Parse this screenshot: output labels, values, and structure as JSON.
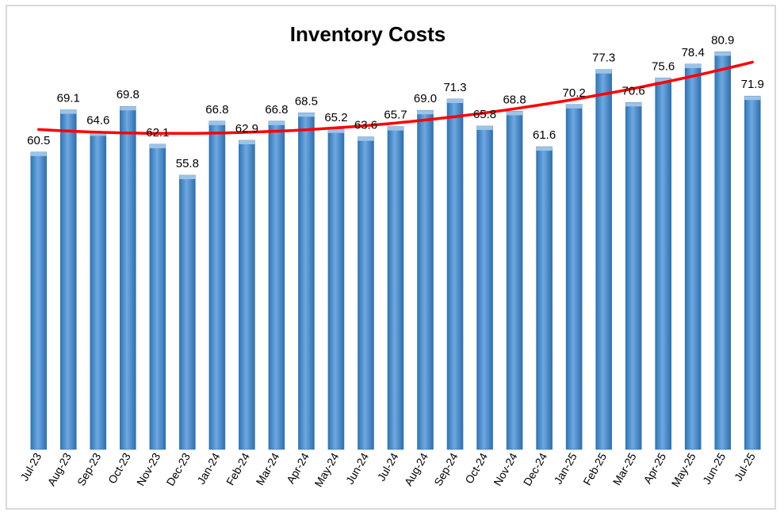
{
  "chart_data": {
    "type": "bar",
    "title": "Inventory Costs",
    "xlabel": "",
    "ylabel": "",
    "ylim": [
      0,
      85
    ],
    "grid": false,
    "legend": "none",
    "categories": [
      "Jul-23",
      "Aug-23",
      "Sep-23",
      "Oct-23",
      "Nov-23",
      "Dec-23",
      "Jan-24",
      "Feb-24",
      "Mar-24",
      "Apr-24",
      "May-24",
      "Jun-24",
      "Jul-24",
      "Aug-24",
      "Sep-24",
      "Oct-24",
      "Nov-24",
      "Dec-24",
      "Jan-25",
      "Feb-25",
      "Mar-25",
      "Apr-25",
      "May-25",
      "Jun-25",
      "Jul-25"
    ],
    "values": [
      60.5,
      69.1,
      64.6,
      69.8,
      62.1,
      55.8,
      66.8,
      62.9,
      66.8,
      68.5,
      65.2,
      63.6,
      65.7,
      69.0,
      71.3,
      65.8,
      68.8,
      61.6,
      70.2,
      77.3,
      70.6,
      75.6,
      78.4,
      80.9,
      71.9
    ],
    "value_labels": [
      "60.5",
      "69.1",
      "64.6",
      "69.8",
      "62.1",
      "55.8",
      "66.8",
      "62.9",
      "66.8",
      "68.5",
      "65.2",
      "63.6",
      "65.7",
      "69.0",
      "71.3",
      "65.8",
      "68.8",
      "61.6",
      "70.2",
      "77.3",
      "70.6",
      "75.6",
      "78.4",
      "80.9",
      "71.9"
    ],
    "trendline": {
      "type": "polynomial",
      "start": 65.1,
      "min": 64.3,
      "end": 78.8
    },
    "colors": {
      "bar": "#5b9bd5",
      "bar_dark": "#2e75b6",
      "bar_light": "#9dc3e6",
      "trend": "#ff0000"
    }
  }
}
